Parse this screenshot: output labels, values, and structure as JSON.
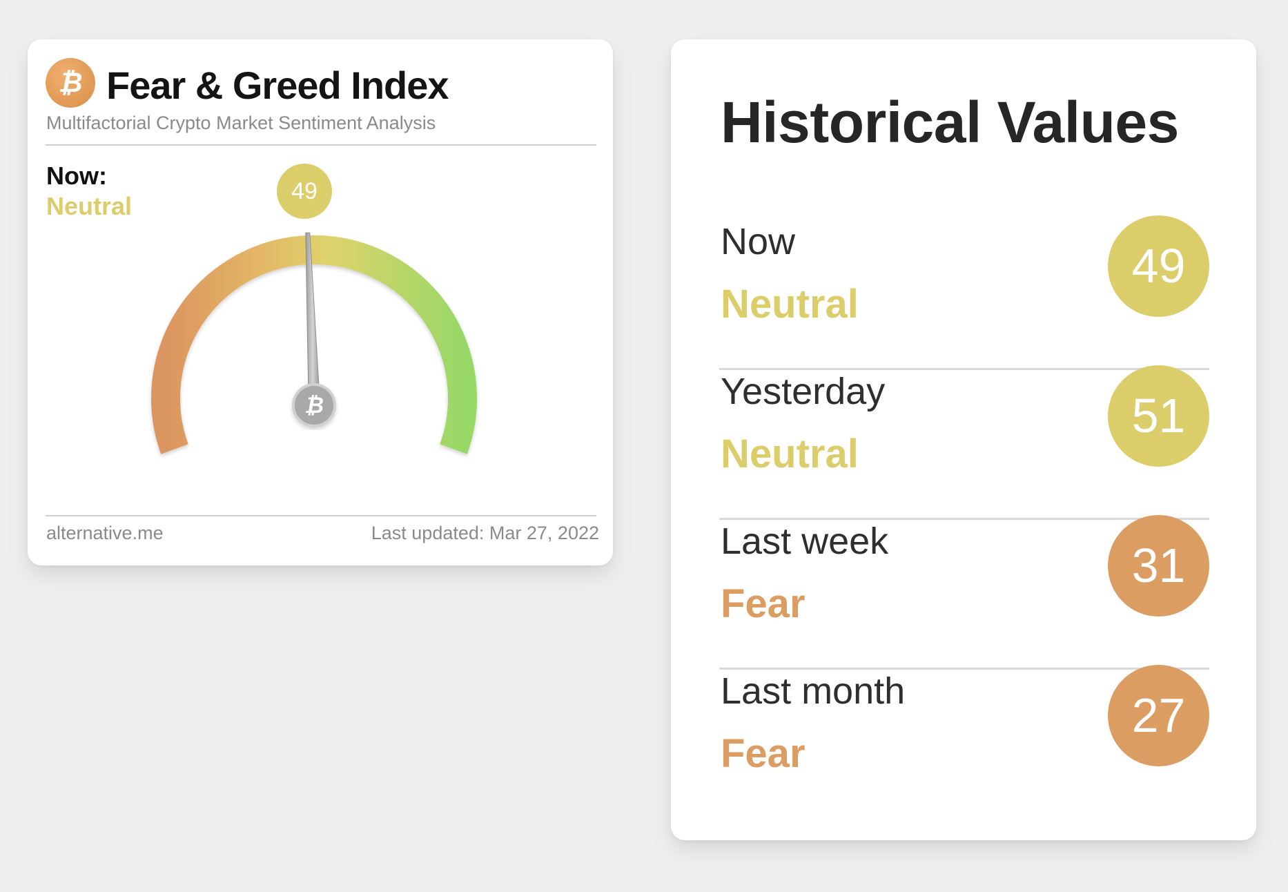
{
  "fear_greed_card": {
    "title": "Fear & Greed Index",
    "subtitle": "Multifactorial Crypto Market Sentiment Analysis",
    "logo_icon": "bitcoin-icon",
    "now_label": "Now:",
    "now_status": "Neutral",
    "now_value": "49",
    "gauge": {
      "value": 49,
      "min": 0,
      "max": 100
    },
    "source": "alternative.me",
    "last_updated": "Last updated: Mar 27, 2022"
  },
  "historical": {
    "title": "Historical Values",
    "rows": [
      {
        "label": "Now",
        "status": "Neutral",
        "value": "49",
        "color": "#dccd6b"
      },
      {
        "label": "Yesterday",
        "status": "Neutral",
        "value": "51",
        "color": "#dccd6b"
      },
      {
        "label": "Last week",
        "status": "Fear",
        "value": "31",
        "color": "#db9d62"
      },
      {
        "label": "Last month",
        "status": "Fear",
        "value": "27",
        "color": "#db9d62"
      }
    ]
  },
  "colors": {
    "neutral": "#dccd6b",
    "fear": "#db9d62",
    "greed": "#9ed86a",
    "background": "#efefef"
  }
}
